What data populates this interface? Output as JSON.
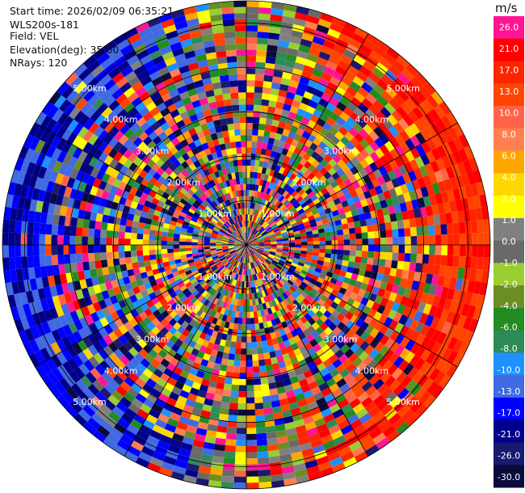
{
  "info": {
    "start_time": "Start time: 2026/02/09 06:35:21",
    "instrument": "WLS200s-181",
    "field": "Field: VEL",
    "elevation": "Elevation(deg): 35.00",
    "nrays": "NRays: 120"
  },
  "chart_data": {
    "type": "heatmap",
    "projection": "polar-ppi",
    "field": "VEL",
    "units": "m/s",
    "nrays": 120,
    "range_rings_km": [
      1.0,
      2.0,
      3.0,
      4.0,
      5.0
    ],
    "range_ring_labels": [
      "1.00km",
      "2.00km",
      "3.00km",
      "4.00km",
      "5.00km"
    ],
    "max_range_km": 5.5,
    "colorbar": {
      "label": "m/s",
      "ticks": [
        "26.0",
        "21.0",
        "17.0",
        "13.0",
        "10.0",
        "8.0",
        "6.0",
        "4.0",
        "2.0",
        "1.0",
        "0.0",
        "-1.0",
        "-2.0",
        "-4.0",
        "-6.0",
        "-8.0",
        "-10.0",
        "-13.0",
        "-17.0",
        "-21.0",
        "-26.0",
        "-30.0"
      ],
      "colors": [
        "#ff1493",
        "#ff0000",
        "#ff2400",
        "#ff4500",
        "#ff6347",
        "#ff7f50",
        "#ffa500",
        "#ffd700",
        "#ffff00",
        "#808080",
        "#696969",
        "#9acd32",
        "#6b8e23",
        "#228b22",
        "#2e8b57",
        "#1e90ff",
        "#4169e1",
        "#0000ff",
        "#00008b",
        "#191970",
        "#0b0b3b"
      ]
    },
    "dominant_pattern": {
      "far_range_east_velocity": 17.0,
      "far_range_west_velocity": -17.0,
      "near_range": "noisy"
    }
  }
}
